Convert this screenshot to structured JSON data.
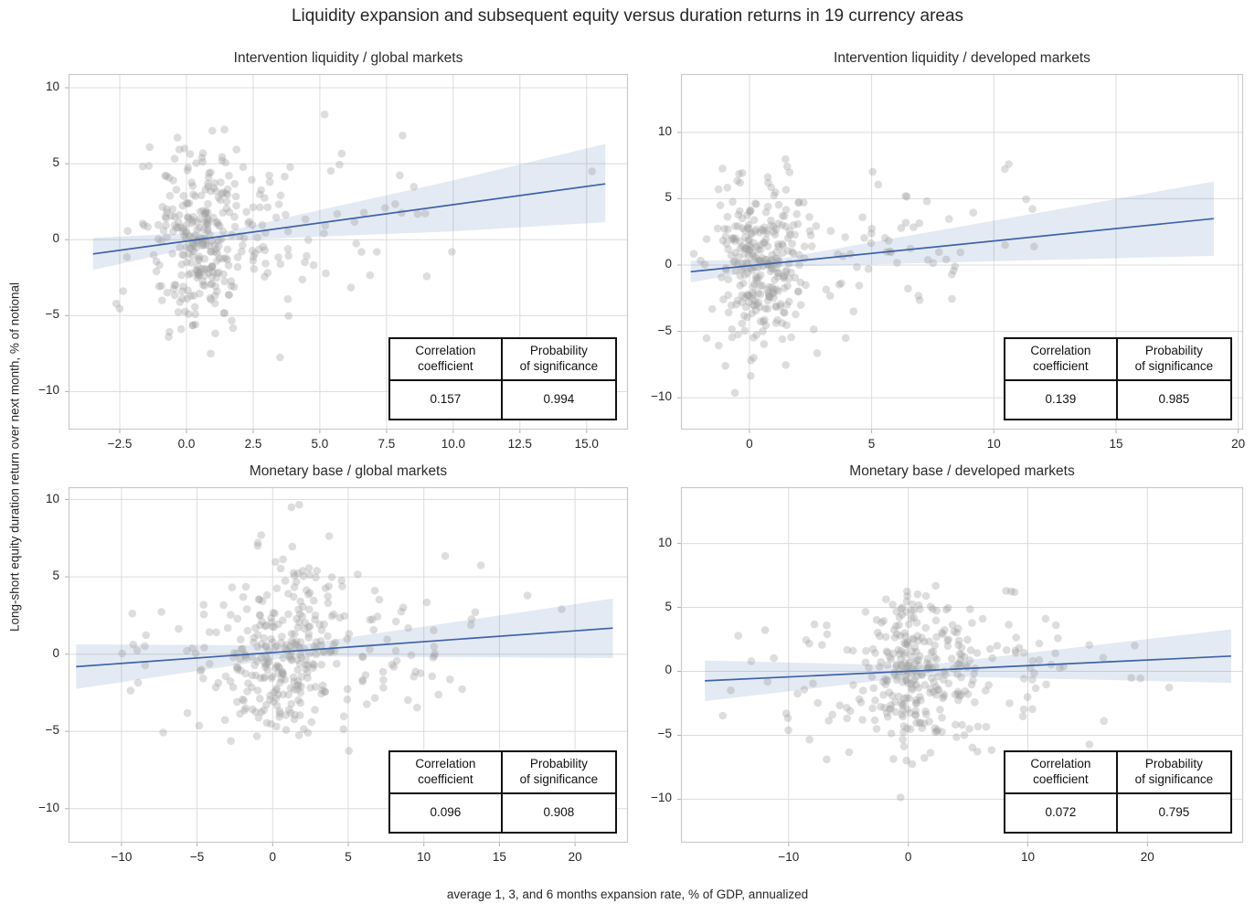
{
  "figure": {
    "title": "Liquidity expansion and subsequent equity versus duration returns in 19 currency areas",
    "xlabel": "average 1, 3, and 6 months expansion rate, % of GDP, annualized",
    "ylabel": "Long-short equity duration return over next month, % of notional"
  },
  "colors": {
    "panel_bg": "#ffffff",
    "grid": "#dcdcdc",
    "spine": "#cacaca",
    "tick": "#b0b0b0",
    "point": "#9e9e9e",
    "point_opacity": 0.35,
    "reg_line": "#3d63a8",
    "band": "#4c72b0",
    "band_opacity": 0.15,
    "text": "#262626"
  },
  "stats_table": {
    "correlation_lines": [
      "Correlation",
      "coefficient"
    ],
    "probability_lines": [
      "Probability",
      "of significance"
    ]
  },
  "chart_data": [
    {
      "type": "scatter",
      "title": "Intervention liquidity / global markets",
      "xlim": [
        -4.42,
        16.55
      ],
      "ylim": [
        -12.5,
        10.9
      ],
      "x_tick_values": [
        -2.5,
        0,
        2.5,
        5,
        7.5,
        10,
        12.5,
        15
      ],
      "x_tick_labels": [
        "−2.5",
        "0.0",
        "2.5",
        "5.0",
        "7.5",
        "10.0",
        "12.5",
        "15.0"
      ],
      "y_tick_values": [
        10,
        5,
        0,
        -5,
        -10
      ],
      "y_tick_labels": [
        "10",
        "5",
        "0",
        "−5",
        "−10"
      ],
      "regression": {
        "x": [
          -3.5,
          15.7
        ],
        "y": [
          -0.94,
          3.67
        ]
      },
      "ci_band": {
        "x": [
          -3.5,
          1.5,
          5,
          10,
          15.7
        ],
        "upper": [
          0.12,
          0.55,
          1.95,
          3.9,
          6.3
        ],
        "lower": [
          -2.0,
          -0.05,
          0.2,
          0.55,
          1.15
        ]
      },
      "stats": {
        "correlation": "0.157",
        "probability": "0.994"
      },
      "scatter": {
        "seed": 7,
        "n": 350,
        "mix": [
          {
            "w": 0.7,
            "mu": 0.55,
            "sd": 0.85
          },
          {
            "w": 0.3,
            "mu": 3.2,
            "sd": 3.4
          }
        ],
        "x_clip": [
          -3.6,
          15.8
        ],
        "noise_sd": 2.9,
        "y_clip": [
          -10.9,
          9.15
        ]
      }
    },
    {
      "type": "scatter",
      "title": "Intervention liquidity / developed markets",
      "xlim": [
        -2.8,
        20.2
      ],
      "ylim": [
        -12.4,
        14.4
      ],
      "x_tick_values": [
        0,
        5,
        10,
        15,
        20
      ],
      "x_tick_labels": [
        "0",
        "5",
        "10",
        "15",
        "20"
      ],
      "y_tick_values": [
        10,
        5,
        0,
        -5,
        -10
      ],
      "y_tick_labels": [
        "10",
        "5",
        "0",
        "−5",
        "−10"
      ],
      "regression": {
        "x": [
          -2.4,
          19.0
        ],
        "y": [
          -0.5,
          3.5
        ]
      },
      "ci_band": {
        "x": [
          -2.4,
          1.2,
          6,
          12,
          19
        ],
        "upper": [
          0.31,
          0.47,
          2.05,
          4.0,
          6.3
        ],
        "lower": [
          -1.31,
          -0.13,
          0.1,
          0.38,
          0.7
        ]
      },
      "stats": {
        "correlation": "0.139",
        "probability": "0.985"
      },
      "scatter": {
        "seed": 13,
        "n": 350,
        "mix": [
          {
            "w": 0.74,
            "mu": 0.45,
            "sd": 0.85
          },
          {
            "w": 0.26,
            "mu": 3.8,
            "sd": 4.2
          }
        ],
        "x_clip": [
          -2.5,
          19.2
        ],
        "noise_sd": 3.0,
        "y_clip": [
          -10.4,
          13.5
        ]
      }
    },
    {
      "type": "scatter",
      "title": "Monetary base / global markets",
      "xlim": [
        -13.5,
        23.5
      ],
      "ylim": [
        -12.2,
        10.8
      ],
      "x_tick_values": [
        -10,
        -5,
        0,
        5,
        10,
        15,
        20
      ],
      "x_tick_labels": [
        "−10",
        "−5",
        "0",
        "5",
        "10",
        "15",
        "20"
      ],
      "y_tick_values": [
        10,
        5,
        0,
        -5,
        -10
      ],
      "y_tick_labels": [
        "10",
        "5",
        "0",
        "−5",
        "−10"
      ],
      "regression": {
        "x": [
          -13.0,
          22.5
        ],
        "y": [
          -0.81,
          1.68
        ]
      },
      "ci_band": {
        "x": [
          -13,
          1.5,
          8,
          15,
          22.5
        ],
        "upper": [
          0.63,
          0.56,
          1.5,
          2.5,
          3.6
        ],
        "lower": [
          -2.25,
          -0.15,
          -0.18,
          -0.21,
          -0.25
        ]
      },
      "stats": {
        "correlation": "0.096",
        "probability": "0.908"
      },
      "scatter": {
        "seed": 21,
        "n": 360,
        "mix": [
          {
            "w": 0.55,
            "mu": 0.9,
            "sd": 1.6
          },
          {
            "w": 0.45,
            "mu": 2.5,
            "sd": 6.5
          }
        ],
        "x_clip": [
          -13.2,
          22.7
        ],
        "noise_sd": 2.9,
        "y_clip": [
          -11.3,
          9.7
        ]
      }
    },
    {
      "type": "scatter",
      "title": "Monetary base / developed markets",
      "xlim": [
        -19.0,
        28.0
      ],
      "ylim": [
        -13.4,
        14.4
      ],
      "x_tick_values": [
        -10,
        0,
        10,
        20
      ],
      "x_tick_labels": [
        "−10",
        "0",
        "10",
        "20"
      ],
      "y_tick_values": [
        10,
        5,
        0,
        -5,
        -10
      ],
      "y_tick_labels": [
        "10",
        "5",
        "0",
        "−5",
        "−10"
      ],
      "regression": {
        "x": [
          -17.0,
          27.0
        ],
        "y": [
          -0.74,
          1.19
        ]
      },
      "ci_band": {
        "x": [
          -17,
          1,
          9,
          18,
          27
        ],
        "upper": [
          0.85,
          0.44,
          1.32,
          2.3,
          3.28
        ],
        "lower": [
          -2.33,
          -0.36,
          -0.52,
          -0.71,
          -0.9
        ]
      },
      "stats": {
        "correlation": "0.072",
        "probability": "0.795"
      },
      "scatter": {
        "seed": 42,
        "n": 360,
        "mix": [
          {
            "w": 0.55,
            "mu": 0.7,
            "sd": 2.0
          },
          {
            "w": 0.45,
            "mu": 2.5,
            "sd": 8.5
          }
        ],
        "x_clip": [
          -17.2,
          27.2
        ],
        "noise_sd": 3.0,
        "y_clip": [
          -12.4,
          13.4
        ]
      }
    }
  ]
}
